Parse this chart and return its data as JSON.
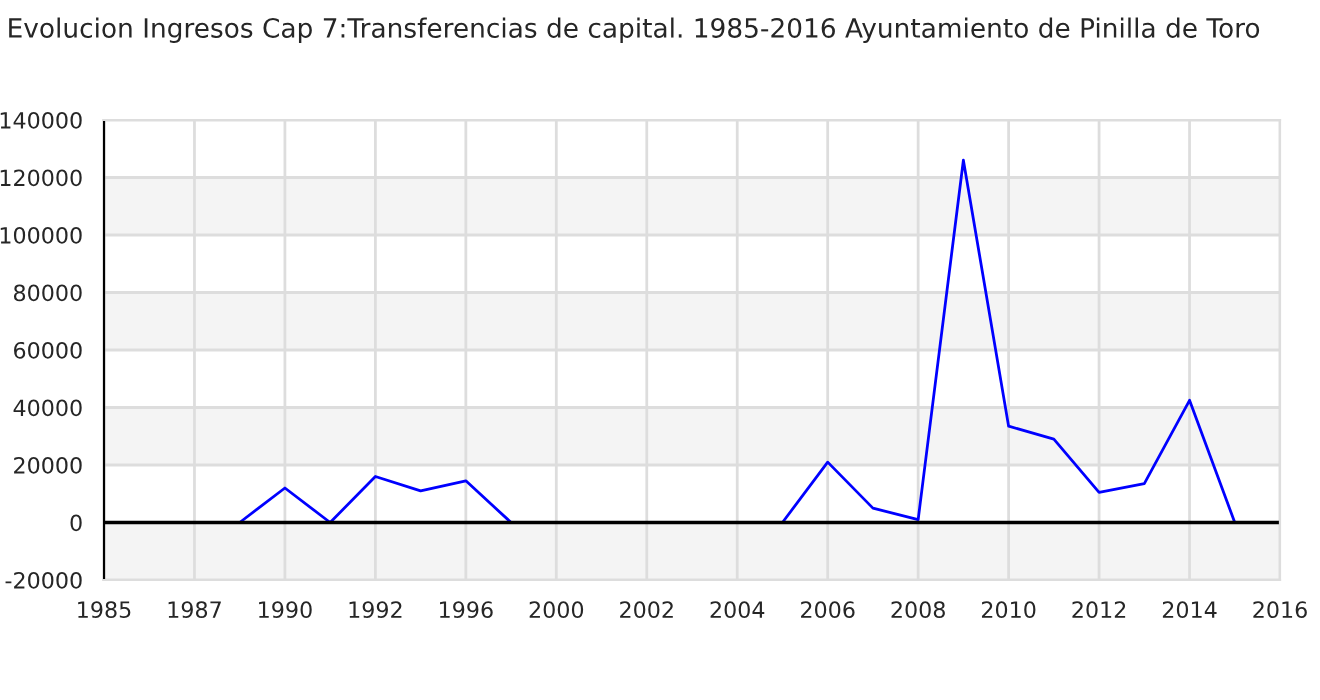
{
  "chart_data": {
    "type": "line",
    "title": "Evolucion Ingresos Cap 7:Transferencias de capital. 1985-2016 Ayuntamiento de Pinilla de Toro",
    "categories": [
      "1985",
      null,
      "1987",
      null,
      "1990",
      null,
      "1992",
      null,
      "1996",
      null,
      "2000",
      null,
      "2002",
      null,
      "2004",
      null,
      "2006",
      null,
      "2008",
      null,
      "2010",
      null,
      "2012",
      null,
      "2014",
      null,
      "2016"
    ],
    "series": [
      {
        "color": "#0000ff",
        "values": [
          null,
          null,
          null,
          0,
          12000,
          0,
          16000,
          11000,
          14500,
          0,
          null,
          null,
          null,
          null,
          null,
          0,
          21000,
          5000,
          1000,
          126000,
          33500,
          29000,
          10500,
          13500,
          42500,
          0,
          null
        ]
      }
    ],
    "ylim": [
      -20000,
      140000
    ],
    "yticks": [
      -20000,
      0,
      20000,
      40000,
      60000,
      80000,
      100000,
      120000,
      140000
    ],
    "grid": true,
    "legend": false,
    "marker": "none",
    "line_style": "solid"
  }
}
